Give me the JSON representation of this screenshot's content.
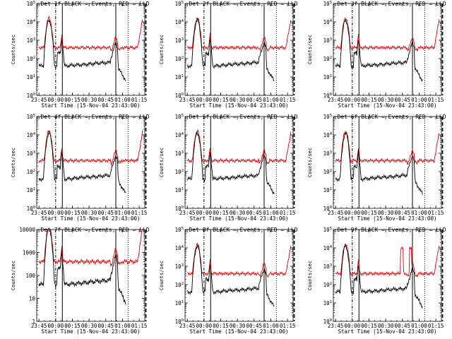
{
  "figure": {
    "colors": {
      "events": "#000000",
      "lld": "#e00000",
      "axes": "#000000",
      "background": "#ffffff"
    }
  },
  "chart_data": [
    {
      "type": "line",
      "title": "Det 1f BLACK = Events, RED = LLD",
      "xlabel": "Start Time (15-Nov-04 23:43:00)",
      "ylabel": "Counts/sec",
      "yscale": "log",
      "ylim": [
        1,
        100000
      ],
      "ytick_labels": [
        "10^0",
        "10^1",
        "10^2",
        "10^3",
        "10^4",
        "10^5"
      ],
      "xticks": [
        "23:45",
        "00:00",
        "00:15",
        "00:30",
        "00:45",
        "01:00",
        "01:15"
      ],
      "markers": {
        "dashdot": [
          "00:00"
        ],
        "solid": [
          "00:06",
          "00:54"
        ],
        "dotted": [
          "01:05"
        ],
        "dashed": [
          "01:21"
        ]
      },
      "series": [
        {
          "name": "Events",
          "color": "#000000"
        },
        {
          "name": "LLD",
          "color": "#e00000"
        }
      ]
    },
    {
      "type": "line",
      "title": "Det 2f BLACK = Events, RED = LLD",
      "xlabel": "Start Time (15-Nov-04 23:43:00)",
      "ylabel": "Counts/sec",
      "yscale": "log",
      "ylim": [
        1,
        100000
      ],
      "ytick_labels": [
        "10^0",
        "10^1",
        "10^2",
        "10^3",
        "10^4",
        "10^5"
      ],
      "xticks": [
        "23:45",
        "00:00",
        "00:15",
        "00:30",
        "00:45",
        "01:00",
        "01:15"
      ],
      "markers": {
        "dashdot": [
          "00:00"
        ],
        "solid": [
          "00:06",
          "00:54"
        ],
        "dotted": [
          "01:05"
        ],
        "dashed": [
          "01:21"
        ]
      },
      "series": [
        {
          "name": "Events",
          "color": "#000000"
        },
        {
          "name": "LLD",
          "color": "#e00000"
        }
      ]
    },
    {
      "type": "line",
      "title": "Det 3f BLACK = Events, RED = LLD",
      "xlabel": "Start Time (15-Nov-04 23:43:00)",
      "ylabel": "Counts/sec",
      "yscale": "log",
      "ylim": [
        1,
        100000
      ],
      "ytick_labels": [
        "10^0",
        "10^1",
        "10^2",
        "10^3",
        "10^4",
        "10^5"
      ],
      "xticks": [
        "23:45",
        "00:00",
        "00:15",
        "00:30",
        "00:45",
        "01:00",
        "01:15"
      ],
      "markers": {
        "dashdot": [
          "00:00"
        ],
        "solid": [
          "00:06",
          "00:54"
        ],
        "dotted": [
          "01:05"
        ],
        "dashed": [
          "01:21"
        ]
      },
      "series": [
        {
          "name": "Events",
          "color": "#000000"
        },
        {
          "name": "LLD",
          "color": "#e00000"
        }
      ]
    },
    {
      "type": "line",
      "title": "Det 4f BLACK = Events, RED = LLD",
      "xlabel": "Start Time (15-Nov-04 23:43:00)",
      "ylabel": "Counts/sec",
      "yscale": "log",
      "ylim": [
        1,
        100000
      ],
      "ytick_labels": [
        "10^0",
        "10^1",
        "10^2",
        "10^3",
        "10^4",
        "10^5"
      ],
      "xticks": [
        "23:45",
        "00:00",
        "00:15",
        "00:30",
        "00:45",
        "01:00",
        "01:15"
      ],
      "markers": {
        "dashdot": [
          "00:00"
        ],
        "solid": [
          "00:06",
          "00:54"
        ],
        "dotted": [
          "01:05"
        ],
        "dashed": [
          "01:21"
        ]
      },
      "series": [
        {
          "name": "Events",
          "color": "#000000"
        },
        {
          "name": "LLD",
          "color": "#e00000"
        }
      ]
    },
    {
      "type": "line",
      "title": "Det 5f BLACK = Events, RED = LLD",
      "xlabel": "Start Time (15-Nov-04 23:43:00)",
      "ylabel": "Counts/sec",
      "yscale": "log",
      "ylim": [
        1,
        100000
      ],
      "ytick_labels": [
        "10^0",
        "10^1",
        "10^2",
        "10^3",
        "10^4",
        "10^5"
      ],
      "xticks": [
        "23:45",
        "00:00",
        "00:15",
        "00:30",
        "00:45",
        "01:00",
        "01:15"
      ],
      "markers": {
        "dashdot": [
          "00:00"
        ],
        "solid": [
          "00:06",
          "00:54"
        ],
        "dotted": [
          "01:05"
        ],
        "dashed": [
          "01:21"
        ]
      },
      "series": [
        {
          "name": "Events",
          "color": "#000000"
        },
        {
          "name": "LLD",
          "color": "#e00000"
        }
      ]
    },
    {
      "type": "line",
      "title": "Det 6f BLACK = Events, RED = LLD",
      "xlabel": "Start Time (15-Nov-04 23:43:00)",
      "ylabel": "Counts/sec",
      "yscale": "log",
      "ylim": [
        1,
        100000
      ],
      "ytick_labels": [
        "10^0",
        "10^1",
        "10^2",
        "10^3",
        "10^4",
        "10^5"
      ],
      "xticks": [
        "23:45",
        "00:00",
        "00:15",
        "00:30",
        "00:45",
        "01:00",
        "01:15"
      ],
      "markers": {
        "dashdot": [
          "00:00"
        ],
        "solid": [
          "00:06",
          "00:54"
        ],
        "dotted": [
          "01:05"
        ],
        "dashed": [
          "01:21"
        ]
      },
      "series": [
        {
          "name": "Events",
          "color": "#000000"
        },
        {
          "name": "LLD",
          "color": "#e00000"
        }
      ]
    },
    {
      "type": "line",
      "title": "Det 7f BLACK = Events, RED = LLD",
      "xlabel": "Start Time (15-Nov-04 23:43:00)",
      "ylabel": "Counts/sec",
      "yscale": "log",
      "ylim": [
        1,
        10000
      ],
      "ytick_labels": [
        "1",
        "10",
        "100",
        "1000",
        "10000"
      ],
      "xticks": [
        "23:45",
        "00:00",
        "00:15",
        "00:30",
        "00:45",
        "01:00",
        "01:15"
      ],
      "markers": {
        "dashdot": [
          "00:00"
        ],
        "solid": [
          "00:06",
          "00:54"
        ],
        "dotted": [
          "01:05"
        ],
        "dashed": [
          "01:21"
        ]
      },
      "series": [
        {
          "name": "Events",
          "color": "#000000"
        },
        {
          "name": "LLD",
          "color": "#e00000"
        }
      ]
    },
    {
      "type": "line",
      "title": "Det 8f BLACK = Events, RED = LLD",
      "xlabel": "Start Time (15-Nov-04 23:43:00)",
      "ylabel": "Counts/sec",
      "yscale": "log",
      "ylim": [
        1,
        100000
      ],
      "ytick_labels": [
        "10^0",
        "10^1",
        "10^2",
        "10^3",
        "10^4",
        "10^5"
      ],
      "xticks": [
        "23:45",
        "00:00",
        "00:15",
        "00:30",
        "00:45",
        "01:00",
        "01:15"
      ],
      "markers": {
        "dashdot": [
          "00:00"
        ],
        "solid": [
          "00:06",
          "00:54"
        ],
        "dotted": [
          "01:05"
        ],
        "dashed": [
          "01:21"
        ]
      },
      "series": [
        {
          "name": "Events",
          "color": "#000000"
        },
        {
          "name": "LLD",
          "color": "#e00000"
        }
      ]
    },
    {
      "type": "line",
      "title": "Det 9f BLACK = Events, RED = LLD",
      "xlabel": "Start Time (15-Nov-04 23:43:00)",
      "ylabel": "Counts/sec",
      "yscale": "log",
      "ylim": [
        1,
        100000
      ],
      "ytick_labels": [
        "10^0",
        "10^1",
        "10^2",
        "10^3",
        "10^4",
        "10^5"
      ],
      "xticks": [
        "23:45",
        "00:00",
        "00:15",
        "00:30",
        "00:45",
        "01:00",
        "01:15"
      ],
      "markers": {
        "dashdot": [
          "00:00"
        ],
        "solid": [
          "00:06",
          "00:54"
        ],
        "dotted": [
          "01:05"
        ],
        "dashed": [
          "01:21"
        ]
      },
      "series": [
        {
          "name": "Events",
          "color": "#000000"
        },
        {
          "name": "LLD",
          "color": "#e00000"
        }
      ]
    }
  ]
}
